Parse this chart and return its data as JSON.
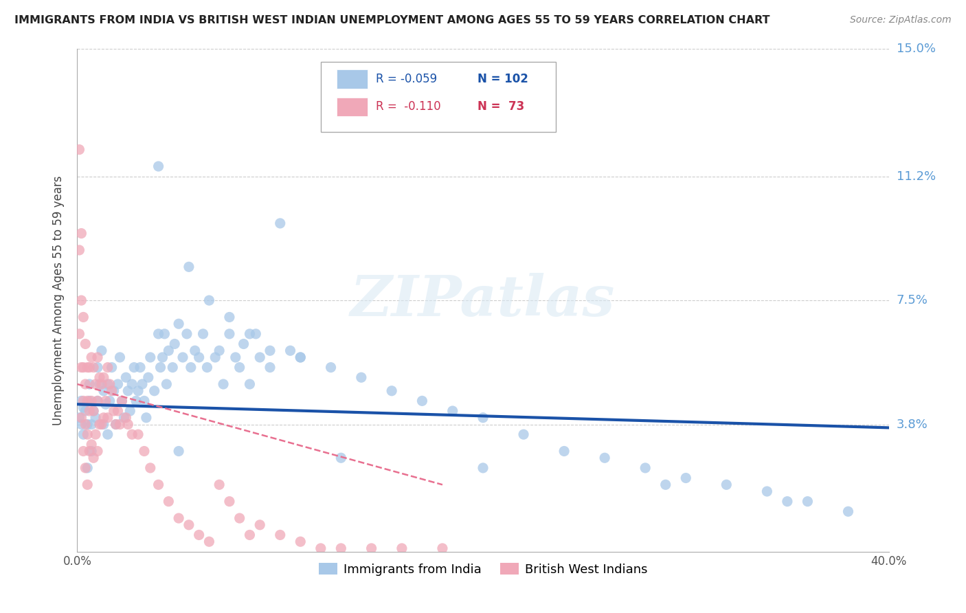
{
  "title": "IMMIGRANTS FROM INDIA VS BRITISH WEST INDIAN UNEMPLOYMENT AMONG AGES 55 TO 59 YEARS CORRELATION CHART",
  "source": "Source: ZipAtlas.com",
  "ylabel": "Unemployment Among Ages 55 to 59 years",
  "xlim": [
    0.0,
    0.4
  ],
  "ylim": [
    0.0,
    0.15
  ],
  "yticks": [
    0.038,
    0.075,
    0.112,
    0.15
  ],
  "ytick_labels": [
    "3.8%",
    "7.5%",
    "11.2%",
    "15.0%"
  ],
  "grid_yticks": [
    0.038,
    0.075,
    0.112,
    0.15
  ],
  "xticks": [
    0.0,
    0.4
  ],
  "xtick_labels": [
    "0.0%",
    "40.0%"
  ],
  "trend_blue": {
    "x_start": 0.0,
    "y_start": 0.044,
    "x_end": 0.4,
    "y_end": 0.037
  },
  "trend_pink": {
    "x_start": 0.0,
    "y_start": 0.05,
    "x_end": 0.18,
    "y_end": 0.02
  },
  "blue_scatter_x": [
    0.001,
    0.002,
    0.002,
    0.003,
    0.003,
    0.004,
    0.005,
    0.005,
    0.006,
    0.006,
    0.007,
    0.007,
    0.008,
    0.009,
    0.01,
    0.01,
    0.011,
    0.012,
    0.013,
    0.013,
    0.014,
    0.015,
    0.015,
    0.016,
    0.017,
    0.018,
    0.019,
    0.02,
    0.021,
    0.022,
    0.023,
    0.024,
    0.025,
    0.026,
    0.027,
    0.028,
    0.029,
    0.03,
    0.031,
    0.032,
    0.033,
    0.034,
    0.035,
    0.036,
    0.038,
    0.04,
    0.041,
    0.042,
    0.043,
    0.044,
    0.045,
    0.047,
    0.048,
    0.05,
    0.052,
    0.054,
    0.056,
    0.058,
    0.06,
    0.062,
    0.064,
    0.068,
    0.07,
    0.072,
    0.075,
    0.078,
    0.08,
    0.082,
    0.085,
    0.088,
    0.09,
    0.095,
    0.1,
    0.105,
    0.11,
    0.04,
    0.055,
    0.065,
    0.075,
    0.085,
    0.095,
    0.11,
    0.125,
    0.14,
    0.155,
    0.17,
    0.185,
    0.2,
    0.22,
    0.24,
    0.26,
    0.28,
    0.3,
    0.32,
    0.34,
    0.36,
    0.38,
    0.05,
    0.13,
    0.2,
    0.29,
    0.35
  ],
  "blue_scatter_y": [
    0.04,
    0.045,
    0.038,
    0.043,
    0.035,
    0.042,
    0.038,
    0.025,
    0.05,
    0.045,
    0.038,
    0.03,
    0.042,
    0.04,
    0.055,
    0.045,
    0.05,
    0.06,
    0.048,
    0.038,
    0.044,
    0.05,
    0.035,
    0.045,
    0.055,
    0.048,
    0.038,
    0.05,
    0.058,
    0.045,
    0.04,
    0.052,
    0.048,
    0.042,
    0.05,
    0.055,
    0.045,
    0.048,
    0.055,
    0.05,
    0.045,
    0.04,
    0.052,
    0.058,
    0.048,
    0.065,
    0.055,
    0.058,
    0.065,
    0.05,
    0.06,
    0.055,
    0.062,
    0.068,
    0.058,
    0.065,
    0.055,
    0.06,
    0.058,
    0.065,
    0.055,
    0.058,
    0.06,
    0.05,
    0.065,
    0.058,
    0.055,
    0.062,
    0.05,
    0.065,
    0.058,
    0.055,
    0.098,
    0.06,
    0.058,
    0.115,
    0.085,
    0.075,
    0.07,
    0.065,
    0.06,
    0.058,
    0.055,
    0.052,
    0.048,
    0.045,
    0.042,
    0.04,
    0.035,
    0.03,
    0.028,
    0.025,
    0.022,
    0.02,
    0.018,
    0.015,
    0.012,
    0.03,
    0.028,
    0.025,
    0.02,
    0.015
  ],
  "pink_scatter_x": [
    0.001,
    0.001,
    0.001,
    0.002,
    0.002,
    0.002,
    0.002,
    0.003,
    0.003,
    0.003,
    0.003,
    0.004,
    0.004,
    0.004,
    0.004,
    0.005,
    0.005,
    0.005,
    0.005,
    0.006,
    0.006,
    0.006,
    0.007,
    0.007,
    0.007,
    0.008,
    0.008,
    0.008,
    0.009,
    0.009,
    0.01,
    0.01,
    0.01,
    0.011,
    0.011,
    0.012,
    0.012,
    0.013,
    0.013,
    0.014,
    0.015,
    0.015,
    0.016,
    0.017,
    0.018,
    0.019,
    0.02,
    0.021,
    0.022,
    0.024,
    0.025,
    0.027,
    0.03,
    0.033,
    0.036,
    0.04,
    0.045,
    0.05,
    0.055,
    0.06,
    0.065,
    0.07,
    0.075,
    0.08,
    0.085,
    0.09,
    0.1,
    0.11,
    0.12,
    0.13,
    0.145,
    0.16,
    0.18
  ],
  "pink_scatter_y": [
    0.12,
    0.09,
    0.065,
    0.095,
    0.075,
    0.055,
    0.04,
    0.07,
    0.055,
    0.045,
    0.03,
    0.062,
    0.05,
    0.038,
    0.025,
    0.055,
    0.045,
    0.035,
    0.02,
    0.055,
    0.042,
    0.03,
    0.058,
    0.045,
    0.032,
    0.055,
    0.042,
    0.028,
    0.05,
    0.035,
    0.058,
    0.045,
    0.03,
    0.052,
    0.038,
    0.05,
    0.038,
    0.052,
    0.04,
    0.045,
    0.055,
    0.04,
    0.05,
    0.048,
    0.042,
    0.038,
    0.042,
    0.038,
    0.045,
    0.04,
    0.038,
    0.035,
    0.035,
    0.03,
    0.025,
    0.02,
    0.015,
    0.01,
    0.008,
    0.005,
    0.003,
    0.02,
    0.015,
    0.01,
    0.005,
    0.008,
    0.005,
    0.003,
    0.001,
    0.001,
    0.001,
    0.001,
    0.001
  ],
  "watermark": "ZIPatlas",
  "blue_color": "#a8c8e8",
  "pink_color": "#f0a8b8",
  "blue_line_color": "#1a52a8",
  "pink_line_color": "#e87090",
  "background_color": "#ffffff",
  "grid_color": "#cccccc",
  "ytick_color": "#5b9bd5",
  "legend_r_blue": "R = -0.059",
  "legend_n_blue": "N = 102",
  "legend_r_pink": "R =  -0.110",
  "legend_n_pink": "N =  73"
}
